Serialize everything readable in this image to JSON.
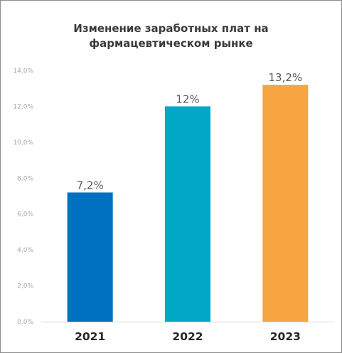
{
  "chart_data": {
    "type": "bar",
    "title_line1": "Изменение заработных плат на",
    "title_line2": "фармацевтическом рынке",
    "categories": [
      "2021",
      "2022",
      "2023"
    ],
    "values": [
      7.2,
      12,
      13.2
    ],
    "data_labels": [
      "7,2%",
      "12%",
      "13,2%"
    ],
    "colors": [
      "#0070c0",
      "#00a8c6",
      "#f7a541"
    ],
    "ylim": [
      0,
      14
    ],
    "yticks": [
      0,
      2,
      4,
      6,
      8,
      10,
      12,
      14
    ],
    "ytick_labels": [
      "0,0%",
      "2,0%",
      "4,0%",
      "6,0%",
      "8,0%",
      "10,0%",
      "12,0%",
      "14,0%"
    ],
    "grid": false,
    "legend": "none"
  }
}
